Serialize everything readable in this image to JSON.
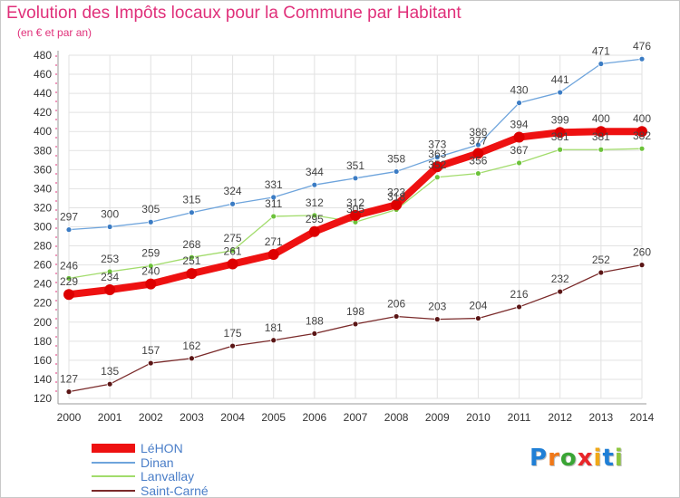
{
  "title": "Evolution des Impôts locaux pour la Commune par Habitant",
  "subtitle": "(en € et par an)",
  "brand": {
    "letters": [
      {
        "char": "P",
        "color": "#1f7fd6"
      },
      {
        "char": "r",
        "color": "#f07818"
      },
      {
        "char": "o",
        "color": "#3aa535"
      },
      {
        "char": "x",
        "color": "#e8262a"
      },
      {
        "char": "i",
        "color": "#f0a818"
      },
      {
        "char": "t",
        "color": "#1f7fd6"
      },
      {
        "char": "i",
        "color": "#8cc63e"
      }
    ]
  },
  "chart_data": {
    "type": "line",
    "title": "Evolution des Impôts locaux pour la Commune par Habitant",
    "subtitle": "(en € et par an)",
    "x": [
      "2000",
      "2001",
      "2002",
      "2003",
      "2004",
      "2005",
      "2006",
      "2007",
      "2008",
      "2009",
      "2010",
      "2011",
      "2012",
      "2013",
      "2014"
    ],
    "ylim": [
      120,
      480
    ],
    "y_ticks": [
      120,
      140,
      160,
      180,
      200,
      220,
      240,
      260,
      280,
      300,
      320,
      340,
      360,
      380,
      400,
      420,
      440,
      460,
      480
    ],
    "grid": true,
    "legend_position": "bottom-left",
    "series": [
      {
        "name": "Saint-Carné",
        "color": "#7a2a2a",
        "marker": "#5a1515",
        "width": 1.3,
        "radius": 3,
        "values": [
          127,
          135,
          157,
          162,
          175,
          181,
          188,
          198,
          206,
          203,
          204,
          216,
          232,
          252,
          260
        ],
        "labels": [
          "127",
          "135",
          "157",
          "162",
          "175",
          "181",
          "188",
          "198",
          "206",
          "203",
          "204",
          "216",
          "232",
          "252",
          "260"
        ]
      },
      {
        "name": "Dinan",
        "color": "#6ea4dc",
        "marker": "#3b7cc4",
        "width": 1.3,
        "radius": 3,
        "values": [
          297,
          300,
          305,
          315,
          324,
          331,
          344,
          351,
          358,
          373,
          386,
          430,
          441,
          471,
          476
        ],
        "labels": [
          "297",
          "300",
          "305",
          "315",
          "324",
          "331",
          "344",
          "351",
          "358",
          "373",
          "386",
          "430",
          "441",
          "471",
          "476"
        ]
      },
      {
        "name": "Lanvallay",
        "color": "#a2dc6c",
        "marker": "#6cc23a",
        "width": 1.3,
        "radius": 3,
        "values": [
          246,
          253,
          259,
          268,
          275,
          311,
          312,
          305,
          318,
          352,
          356,
          367,
          381,
          381,
          382
        ],
        "labels": [
          "246",
          "253",
          "259",
          "268",
          "275",
          "311",
          "312",
          "305",
          "318",
          "352",
          "356",
          "367",
          "381",
          "381",
          "382"
        ]
      },
      {
        "name": "LéHON",
        "color": "#ee1111",
        "marker": "#dd0000",
        "width": 8,
        "radius": 6,
        "values": [
          229,
          234,
          240,
          251,
          261,
          271,
          295,
          312,
          323,
          363,
          377,
          394,
          399,
          400,
          400
        ],
        "labels": [
          "229",
          "234",
          "240",
          "251",
          "261",
          "271",
          "295",
          "312",
          "323",
          "363",
          "377",
          "394",
          "399",
          "400",
          "400"
        ]
      }
    ],
    "legend_order": [
      "LéHON",
      "Dinan",
      "Lanvallay",
      "Saint-Carné"
    ]
  }
}
